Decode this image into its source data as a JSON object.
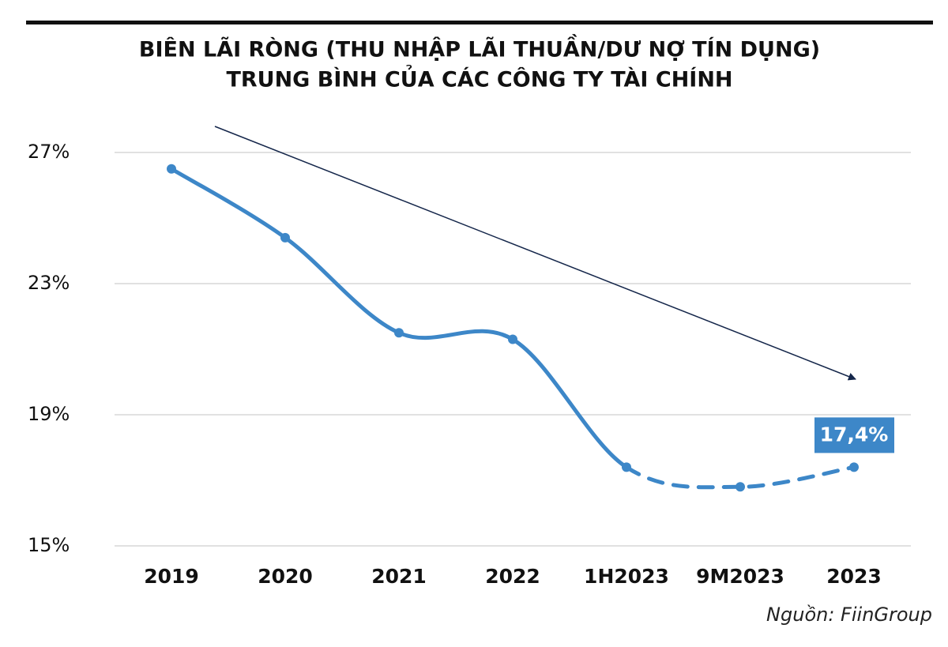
{
  "chart_data": {
    "type": "line",
    "title": "BIÊN LÃI RÒNG (THU NHẬP LÃI THUẦN/DƯ NỢ TÍN DỤNG)",
    "subtitle": "TRUNG BÌNH CỦA CÁC CÔNG TY TÀI CHÍNH",
    "categories": [
      "2019",
      "2020",
      "2021",
      "2022",
      "1H2023",
      "9M2023",
      "2023"
    ],
    "series": [
      {
        "color": "#3d87c8",
        "dashed_from_index": 4,
        "values": [
          26.5,
          24.4,
          21.5,
          21.3,
          17.4,
          16.8,
          17.4
        ],
        "value_labels": [
          null,
          null,
          null,
          null,
          null,
          null,
          "17,4%"
        ]
      }
    ],
    "ylim": [
      15,
      28
    ],
    "yticks": [
      {
        "value": 15,
        "label": "15%"
      },
      {
        "value": 19,
        "label": "19%"
      },
      {
        "value": 23,
        "label": "23%"
      },
      {
        "value": 27,
        "label": "27%"
      }
    ],
    "grid": true,
    "source": "Nguồn: FiinGroup"
  }
}
